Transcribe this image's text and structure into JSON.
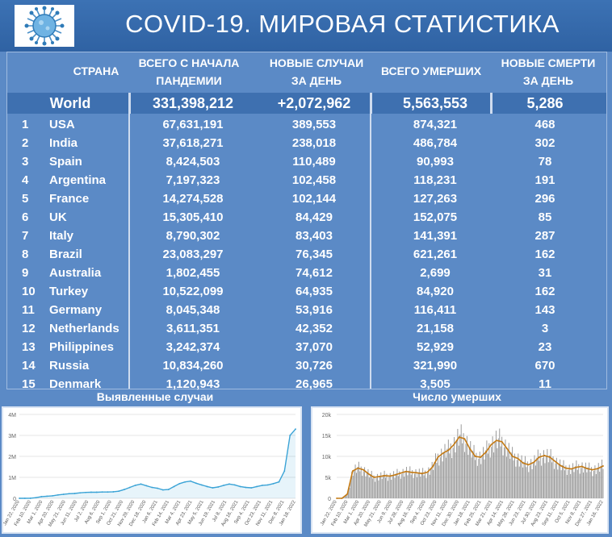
{
  "title": "COVID-19. МИРОВАЯ СТАТИСТИКА",
  "headers": {
    "country": "СТРАНА",
    "total_cases": [
      "ВСЕГО С НАЧАЛА",
      "ПАНДЕМИИ"
    ],
    "new_cases": [
      "НОВЫЕ СЛУЧАИ",
      "ЗА ДЕНЬ"
    ],
    "total_deaths": "ВСЕГО УМЕРШИХ",
    "new_deaths": [
      "НОВЫЕ СМЕРТИ",
      "ЗА ДЕНЬ"
    ]
  },
  "world": {
    "label": "World",
    "total_cases": "331,398,212",
    "new_cases": "+2,072,962",
    "total_deaths": "5,563,553",
    "new_deaths": "5,286"
  },
  "rows": [
    {
      "rank": "1",
      "country": "USA",
      "total_cases": "67,631,191",
      "new_cases": "389,553",
      "total_deaths": "874,321",
      "new_deaths": "468"
    },
    {
      "rank": "2",
      "country": "India",
      "total_cases": "37,618,271",
      "new_cases": "238,018",
      "total_deaths": "486,784",
      "new_deaths": "302"
    },
    {
      "rank": "3",
      "country": "Spain",
      "total_cases": "8,424,503",
      "new_cases": "110,489",
      "total_deaths": "90,993",
      "new_deaths": "78"
    },
    {
      "rank": "4",
      "country": "Argentina",
      "total_cases": "7,197,323",
      "new_cases": "102,458",
      "total_deaths": "118,231",
      "new_deaths": "191"
    },
    {
      "rank": "5",
      "country": "France",
      "total_cases": "14,274,528",
      "new_cases": "102,144",
      "total_deaths": "127,263",
      "new_deaths": "296"
    },
    {
      "rank": "6",
      "country": "UK",
      "total_cases": "15,305,410",
      "new_cases": "84,429",
      "total_deaths": "152,075",
      "new_deaths": "85"
    },
    {
      "rank": "7",
      "country": "Italy",
      "total_cases": "8,790,302",
      "new_cases": "83,403",
      "total_deaths": "141,391",
      "new_deaths": "287"
    },
    {
      "rank": "8",
      "country": "Brazil",
      "total_cases": "23,083,297",
      "new_cases": "76,345",
      "total_deaths": "621,261",
      "new_deaths": "162"
    },
    {
      "rank": "9",
      "country": "Australia",
      "total_cases": "1,802,455",
      "new_cases": "74,612",
      "total_deaths": "2,699",
      "new_deaths": "31"
    },
    {
      "rank": "10",
      "country": "Turkey",
      "total_cases": "10,522,099",
      "new_cases": "64,935",
      "total_deaths": "84,920",
      "new_deaths": "162"
    },
    {
      "rank": "11",
      "country": "Germany",
      "total_cases": "8,045,348",
      "new_cases": "53,916",
      "total_deaths": "116,411",
      "new_deaths": "143"
    },
    {
      "rank": "12",
      "country": "Netherlands",
      "total_cases": "3,611,351",
      "new_cases": "42,352",
      "total_deaths": "21,158",
      "new_deaths": "3"
    },
    {
      "rank": "13",
      "country": "Philippines",
      "total_cases": "3,242,374",
      "new_cases": "37,070",
      "total_deaths": "52,929",
      "new_deaths": "23"
    },
    {
      "rank": "14",
      "country": "Russia",
      "total_cases": "10,834,260",
      "new_cases": "30,726",
      "total_deaths": "321,990",
      "new_deaths": "670"
    },
    {
      "rank": "15",
      "country": "Denmark",
      "total_cases": "1,120,943",
      "new_cases": "26,965",
      "total_deaths": "3,505",
      "new_deaths": "11"
    }
  ],
  "chart_data": [
    {
      "type": "line",
      "title": "Выявленные случаи",
      "y_ticks": [
        "0",
        "1M",
        "2M",
        "3M",
        "4M"
      ],
      "ylim": [
        0,
        4000000
      ],
      "x_ticks": [
        "Jan 22, 2020",
        "Feb 10, 2020",
        "Mar 1, 2020",
        "Apr 20, 2020",
        "May 21, 2020",
        "Jun 11, 2020",
        "Jul 2, 2020",
        "Aug 6, 2020",
        "Sep 1, 2020",
        "Oct 21, 2020",
        "Nov 29, 2020",
        "Dec 18, 2020",
        "Jan 6, 2021",
        "Feb 14, 2021",
        "Mar 4, 2021",
        "Apr 23, 2021",
        "May 5, 2021",
        "Jun 19, 2021",
        "Jul 8, 2021",
        "Aug 16, 2021",
        "Sep 4, 2021",
        "Oct 23, 2021",
        "Nov 11, 2021",
        "Dec 8, 2021",
        "Jan 18, 2022"
      ],
      "series": [
        {
          "color": "#3aa3d6",
          "values": [
            0,
            0,
            2000,
            30000,
            80000,
            100000,
            120000,
            160000,
            190000,
            220000,
            230000,
            260000,
            280000,
            290000,
            290000,
            300000,
            300000,
            310000,
            340000,
            420000,
            520000,
            620000,
            680000,
            600000,
            520000,
            480000,
            400000,
            420000,
            560000,
            700000,
            780000,
            820000,
            720000,
            640000,
            560000,
            500000,
            540000,
            620000,
            680000,
            640000,
            560000,
            520000,
            500000,
            560000,
            620000,
            640000,
            700000,
            780000,
            1300000,
            3000000,
            3300000
          ]
        }
      ]
    },
    {
      "type": "bar",
      "title": "Число умерших",
      "y_ticks": [
        "0",
        "5k",
        "10k",
        "15k",
        "20k"
      ],
      "ylim": [
        0,
        20000
      ],
      "x_ticks": [
        "Jan 22, 2020",
        "Feb 10, 2020",
        "Mar 1, 2020",
        "Apr 20, 2020",
        "May 21, 2020",
        "Jun 9, 2020",
        "Jul 28, 2020",
        "Aug 16, 2020",
        "Sep 4, 2020",
        "Oct 23, 2020",
        "Nov 11, 2020",
        "Dec 30, 2020",
        "Jan 18, 2021",
        "Feb 25, 2021",
        "Mar 21, 2021",
        "Apr 14, 2021",
        "May 28, 2021",
        "Jun 23, 2021",
        "Jul 30, 2021",
        "Aug 23, 2021",
        "Sep 11, 2021",
        "Oct 5, 2021",
        "Nov 8, 2021",
        "Dec 27, 2021",
        "Jan 16, 2022"
      ],
      "series": [
        {
          "kind": "bars",
          "color": "#9a9a9a"
        },
        {
          "kind": "line",
          "color": "#c47a14",
          "values": [
            0,
            0,
            1000,
            6500,
            7200,
            6800,
            5800,
            5000,
            5200,
            5400,
            5300,
            5600,
            6000,
            6400,
            6200,
            6100,
            5900,
            6200,
            7500,
            9800,
            10800,
            11500,
            12800,
            14600,
            14200,
            11800,
            10000,
            9800,
            11000,
            12800,
            13800,
            13500,
            11800,
            10000,
            9500,
            8400,
            8000,
            8600,
            9800,
            10200,
            9800,
            8800,
            7800,
            7200,
            7000,
            7400,
            7600,
            7100,
            6800,
            7100,
            7700
          ]
        }
      ]
    }
  ]
}
